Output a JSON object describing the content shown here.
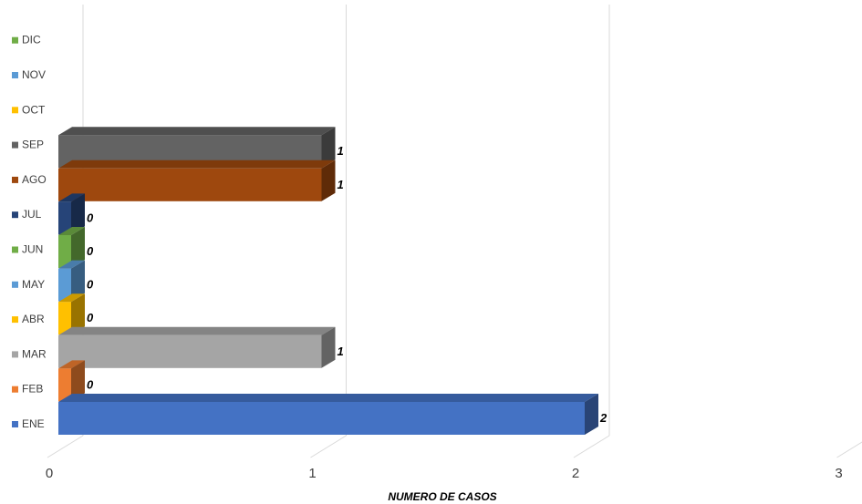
{
  "chart_data": {
    "type": "bar",
    "orientation": "horizontal",
    "style": "3d",
    "categories": [
      "ENE",
      "FEB",
      "MAR",
      "ABR",
      "MAY",
      "JUN",
      "JUL",
      "AGO",
      "SEP",
      "OCT",
      "NOV",
      "DIC"
    ],
    "values": [
      2,
      0,
      1,
      0,
      0,
      0,
      0,
      1,
      1,
      null,
      null,
      null
    ],
    "value_labels": [
      "2",
      "0",
      "1",
      "0",
      "0",
      "0",
      "0",
      "1",
      "1",
      "",
      "",
      ""
    ],
    "colors": [
      "#4472C4",
      "#ED7D31",
      "#A5A5A5",
      "#FFC000",
      "#5B9BD5",
      "#70AD47",
      "#264478",
      "#9E480E",
      "#636363",
      "#FFC000",
      "#5B9BD5",
      "#70AD47"
    ],
    "xlabel": "NUMERO DE CASOS",
    "xticks": [
      "0",
      "1",
      "2",
      "3"
    ],
    "xlim": [
      0,
      3
    ],
    "grid": true,
    "legend_position": "left"
  }
}
